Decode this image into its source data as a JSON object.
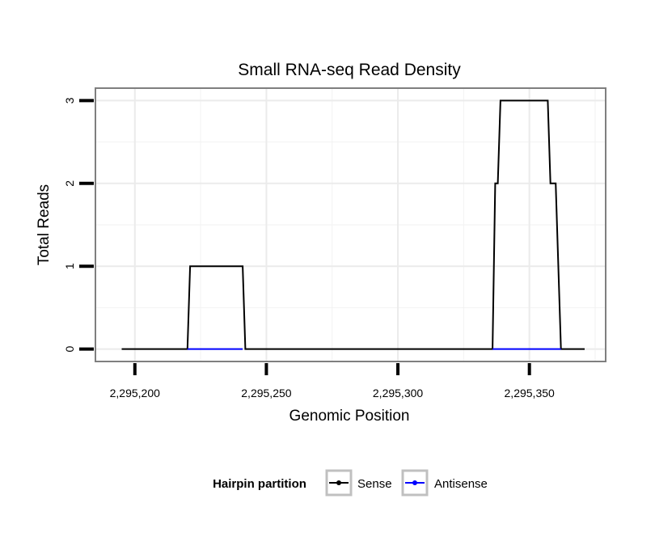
{
  "chart_data": {
    "type": "line",
    "title": "Small RNA-seq Read Density",
    "xlabel": "Genomic Position",
    "ylabel": "Total Reads",
    "xlim": [
      2295185,
      2295379
    ],
    "ylim": [
      -0.15,
      3.15
    ],
    "x_ticks": [
      2295200,
      2295250,
      2295300,
      2295350
    ],
    "x_tick_labels": [
      "2,295,200",
      "2,295,250",
      "2,295,300",
      "2,295,350"
    ],
    "y_ticks": [
      0,
      1,
      2,
      3
    ],
    "y_tick_labels": [
      "0",
      "1",
      "2",
      "3"
    ],
    "grid": true,
    "legend": {
      "title": "Hairpin partition",
      "position": "bottom",
      "entries": [
        {
          "label": "Sense",
          "color": "#000000"
        },
        {
          "label": "Antisense",
          "color": "#0000ff"
        }
      ]
    },
    "series": [
      {
        "name": "Sense",
        "color": "#000000",
        "x": [
          2295195,
          2295220,
          2295221,
          2295241,
          2295242,
          2295336,
          2295337,
          2295338,
          2295339,
          2295357,
          2295358,
          2295359,
          2295360,
          2295362,
          2295371
        ],
        "y": [
          0,
          0,
          1,
          1,
          0,
          0,
          2,
          2,
          3,
          3,
          2,
          2,
          2,
          0,
          0
        ]
      },
      {
        "name": "Antisense",
        "color": "#0000ff",
        "x": [
          2295220,
          2295241,
          2295336,
          2295362
        ],
        "y": [
          0,
          0,
          0,
          0
        ],
        "segments": [
          [
            0,
            1
          ],
          [
            2,
            3
          ]
        ]
      }
    ]
  }
}
